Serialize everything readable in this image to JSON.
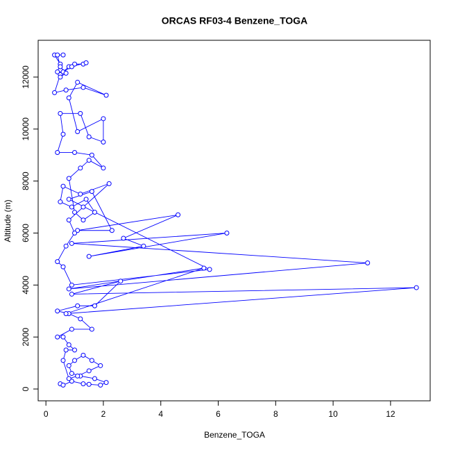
{
  "chart_data": {
    "type": "line",
    "title": "ORCAS RF03-4 Benzene_TOGA",
    "x_label": "Benzene_TOGA",
    "y_label": "Altitude (m)",
    "color": "#0000ff",
    "xlim": [
      -0.27,
      13.38
    ],
    "ylim": [
      -454,
      13415
    ],
    "xticks": [
      0,
      2,
      4,
      6,
      8,
      10,
      12
    ],
    "yticks": [
      0,
      2000,
      4000,
      6000,
      8000,
      10000,
      12000
    ],
    "x": [
      0.5,
      0.6,
      0.9,
      1.3,
      1.5,
      1.9,
      2.1,
      1.7,
      1.2,
      0.9,
      0.8,
      1.0,
      1.3,
      1.6,
      1.9,
      1.5,
      1.1,
      0.8,
      0.6,
      0.7,
      1.0,
      0.8,
      0.6,
      0.4,
      0.9,
      1.6,
      1.2,
      0.8,
      0.4,
      1.1,
      1.7,
      2.6,
      0.9,
      12.9,
      0.7,
      5.5,
      0.8,
      11.2,
      0.9,
      6.3,
      1.5,
      3.4,
      2.7,
      4.6,
      1.1,
      2.3,
      1.6,
      0.8,
      5.7,
      0.9,
      0.6,
      0.4,
      0.7,
      1.0,
      0.8,
      1.3,
      2.2,
      1.2,
      0.6,
      0.5,
      0.9,
      1.4,
      1.7,
      1.3,
      1.0,
      0.8,
      1.2,
      1.5,
      2.0,
      1.6,
      1.0,
      0.4,
      0.6,
      0.5,
      1.2,
      1.5,
      2.0,
      2.0,
      1.1,
      0.8,
      1.1,
      2.1,
      1.3,
      0.7,
      0.3,
      0.5,
      0.8,
      1.0,
      1.3,
      1.4,
      0.9,
      0.6,
      0.4,
      0.5,
      0.3,
      0.6,
      0.4,
      0.5,
      0.7,
      0.5
    ],
    "values": [
      200,
      150,
      300,
      200,
      180,
      150,
      250,
      400,
      500,
      600,
      900,
      1100,
      1300,
      1100,
      900,
      700,
      500,
      400,
      1100,
      1500,
      1500,
      1700,
      2000,
      2000,
      2300,
      2300,
      2700,
      2900,
      3000,
      3200,
      3200,
      4150,
      3650,
      3900,
      2900,
      4650,
      3850,
      4850,
      5600,
      6000,
      5100,
      5500,
      5800,
      6700,
      6100,
      6100,
      7600,
      7300,
      4600,
      4000,
      4700,
      4900,
      5500,
      6000,
      6500,
      7000,
      7900,
      7500,
      7800,
      7200,
      7000,
      7300,
      6800,
      6500,
      6800,
      8100,
      8500,
      8800,
      8500,
      9000,
      9100,
      9100,
      9800,
      10600,
      10600,
      9700,
      9500,
      10400,
      9900,
      11200,
      11800,
      11300,
      11600,
      11500,
      11400,
      12100,
      12400,
      12500,
      12500,
      12550,
      12400,
      12200,
      12200,
      12500,
      12850,
      12850,
      12850,
      12400,
      12150,
      12000
    ]
  }
}
